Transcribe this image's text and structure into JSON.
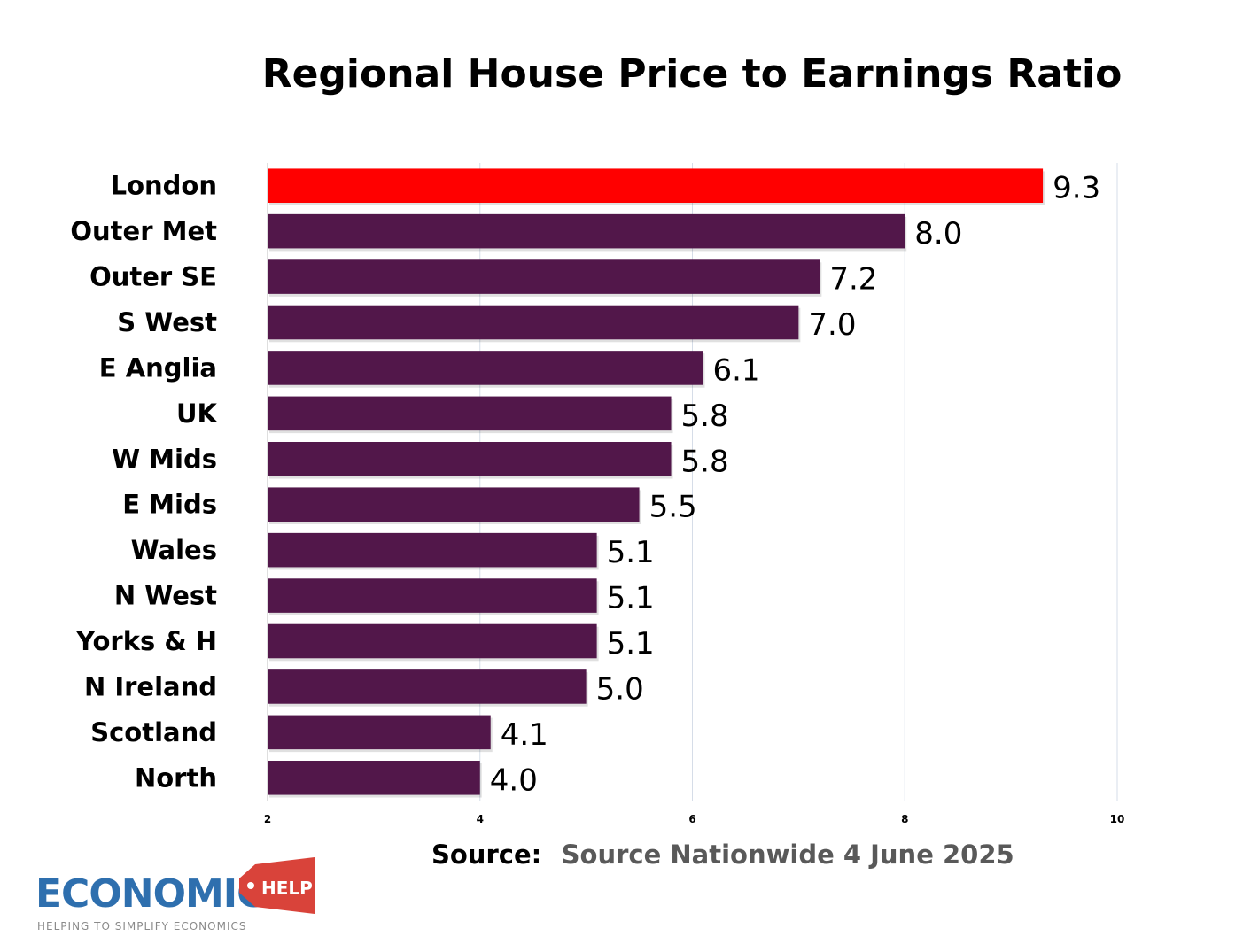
{
  "chart_data": {
    "type": "bar",
    "orientation": "horizontal",
    "title": "Regional House Price to Earnings Ratio",
    "categories": [
      "London",
      "Outer Met",
      "Outer SE",
      "S West",
      "E Anglia",
      "UK",
      "W Mids",
      "E Mids",
      "Wales",
      "N West",
      "Yorks & H",
      "N Ireland",
      "Scotland",
      "North"
    ],
    "values": [
      9.3,
      8.0,
      7.2,
      7.0,
      6.1,
      5.8,
      5.8,
      5.5,
      5.1,
      5.1,
      5.1,
      5.0,
      4.1,
      4.0
    ],
    "value_labels": [
      "9.3",
      "8.0",
      "7.2",
      "7.0",
      "6.1",
      "5.8",
      "5.8",
      "5.5",
      "5.1",
      "5.1",
      "5.1",
      "5.0",
      "4.1",
      "4.0"
    ],
    "xlim": [
      2,
      10
    ],
    "xticks": [
      "2",
      "4",
      "6",
      "8",
      "10"
    ],
    "xlabel": "",
    "ylabel": "",
    "grid": "vertical",
    "colors": {
      "bar": "#52174a",
      "highlight_bar": "#ff0000",
      "gridline": "#d6dde8"
    },
    "highlight_index": 0
  },
  "source": {
    "prefix": "Source:",
    "text": "Source Nationwide 4 June 2025"
  },
  "logo": {
    "name": "ECONOMICS",
    "tag": "HELP",
    "tagline": "HELPING TO SIMPLIFY ECONOMICS"
  }
}
